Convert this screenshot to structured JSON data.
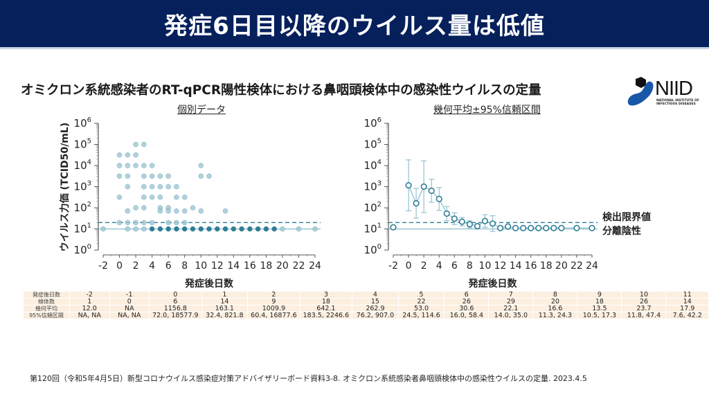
{
  "header": {
    "title": "発症6日目以降のウイルス量は低値"
  },
  "subtitle": "オミクロン系統感染者のRT-qPCR陽性検体における鼻咽頭検体中の感染性ウイルスの定量",
  "logo": {
    "name": "NIID",
    "sub": "NATIONAL INSTITUTE OF INFECTIOUS DISEASES"
  },
  "colors": {
    "header_bg": "#06205c",
    "series": "#2f7d95",
    "series_light": "#9cc6d3",
    "table_bg": "#fcefe0"
  },
  "chart_data": [
    {
      "type": "scatter",
      "title": "個別データ",
      "xlabel": "発症後日数",
      "ylabel": "ウイルス力価 (TCID50/mL)",
      "xlim": [
        -2,
        24
      ],
      "ylim_log10": [
        0,
        6
      ],
      "xticks": [
        "-2",
        "0",
        "2",
        "4",
        "6",
        "8",
        "10",
        "12",
        "14",
        "16",
        "18",
        "20",
        "22",
        "24"
      ],
      "yticks": [
        "10^0",
        "10^1",
        "10^2",
        "10^3",
        "10^4",
        "10^5",
        "10^6"
      ],
      "detection_limit": 20,
      "isolation_negative": 10,
      "points_log10": [
        {
          "x": -2,
          "y": 1
        },
        {
          "x": 0,
          "y": 4.5
        },
        {
          "x": 0,
          "y": 4
        },
        {
          "x": 0,
          "y": 3.5
        },
        {
          "x": 0,
          "y": 2.5
        },
        {
          "x": 0,
          "y": 1.3
        },
        {
          "x": 1,
          "y": 4.5
        },
        {
          "x": 1,
          "y": 4
        },
        {
          "x": 1,
          "y": 3.5
        },
        {
          "x": 1,
          "y": 3
        },
        {
          "x": 1,
          "y": 1.85
        },
        {
          "x": 1,
          "y": 1.3
        },
        {
          "x": 1,
          "y": 1
        },
        {
          "x": 2,
          "y": 5
        },
        {
          "x": 2,
          "y": 4.5
        },
        {
          "x": 2,
          "y": 4
        },
        {
          "x": 2,
          "y": 2
        },
        {
          "x": 2,
          "y": 1.3
        },
        {
          "x": 2,
          "y": 1
        },
        {
          "x": 3,
          "y": 5
        },
        {
          "x": 3,
          "y": 4
        },
        {
          "x": 3,
          "y": 3.5
        },
        {
          "x": 3,
          "y": 3
        },
        {
          "x": 3,
          "y": 2.5
        },
        {
          "x": 3,
          "y": 2
        },
        {
          "x": 3,
          "y": 1.3
        },
        {
          "x": 3,
          "y": 1
        },
        {
          "x": 4,
          "y": 4
        },
        {
          "x": 4,
          "y": 3.5
        },
        {
          "x": 4,
          "y": 3
        },
        {
          "x": 4,
          "y": 2.5
        },
        {
          "x": 4,
          "y": 1.3
        },
        {
          "x": 4,
          "y": 1
        },
        {
          "x": 5,
          "y": 3.5
        },
        {
          "x": 5,
          "y": 3
        },
        {
          "x": 5,
          "y": 2.5
        },
        {
          "x": 5,
          "y": 2
        },
        {
          "x": 5,
          "y": 1.85
        },
        {
          "x": 5,
          "y": 1
        },
        {
          "x": 6,
          "y": 3.5
        },
        {
          "x": 6,
          "y": 3
        },
        {
          "x": 6,
          "y": 2
        },
        {
          "x": 6,
          "y": 1.85
        },
        {
          "x": 6,
          "y": 1.3
        },
        {
          "x": 6,
          "y": 1
        },
        {
          "x": 7,
          "y": 3
        },
        {
          "x": 7,
          "y": 2.5
        },
        {
          "x": 7,
          "y": 1.85
        },
        {
          "x": 7,
          "y": 1.3
        },
        {
          "x": 7,
          "y": 1
        },
        {
          "x": 8,
          "y": 2.5
        },
        {
          "x": 8,
          "y": 1.85
        },
        {
          "x": 8,
          "y": 1.3
        },
        {
          "x": 8,
          "y": 1
        },
        {
          "x": 9,
          "y": 2
        },
        {
          "x": 9,
          "y": 1
        },
        {
          "x": 10,
          "y": 4
        },
        {
          "x": 10,
          "y": 3.5
        },
        {
          "x": 10,
          "y": 1.85
        },
        {
          "x": 10,
          "y": 1
        },
        {
          "x": 11,
          "y": 3.5
        },
        {
          "x": 11,
          "y": 1
        },
        {
          "x": 12,
          "y": 1
        },
        {
          "x": 13,
          "y": 1.85
        },
        {
          "x": 13,
          "y": 1
        },
        {
          "x": 14,
          "y": 1
        },
        {
          "x": 15,
          "y": 1
        },
        {
          "x": 16,
          "y": 1
        },
        {
          "x": 17,
          "y": 1
        },
        {
          "x": 18,
          "y": 1
        },
        {
          "x": 19,
          "y": 1
        },
        {
          "x": 20,
          "y": 1
        },
        {
          "x": 22,
          "y": 1
        },
        {
          "x": 24,
          "y": 1
        }
      ]
    },
    {
      "type": "line",
      "title": "幾何平均±95%信頼区間",
      "xlabel": "発症後日数",
      "xlim": [
        -2,
        24
      ],
      "ylim_log10": [
        0,
        6
      ],
      "xticks": [
        "-2",
        "0",
        "2",
        "4",
        "6",
        "8",
        "10",
        "12",
        "14",
        "16",
        "18",
        "20",
        "22",
        "24"
      ],
      "yticks": [
        "10^0",
        "10^1",
        "10^2",
        "10^3",
        "10^4",
        "10^5",
        "10^6"
      ],
      "detection_limit_label": "検出限界値",
      "isolation_negative_label": "分離陰性",
      "points": [
        {
          "x": -2,
          "gm": 12.0,
          "lo": null,
          "hi": null
        },
        {
          "x": 0,
          "gm": 1156.8,
          "lo": 72.0,
          "hi": 18577.9
        },
        {
          "x": 1,
          "gm": 163.1,
          "lo": 32.4,
          "hi": 821.8
        },
        {
          "x": 2,
          "gm": 1009.9,
          "lo": 60.4,
          "hi": 16877.6
        },
        {
          "x": 3,
          "gm": 642.1,
          "lo": 183.5,
          "hi": 2246.6
        },
        {
          "x": 4,
          "gm": 262.9,
          "lo": 76.2,
          "hi": 907.0
        },
        {
          "x": 5,
          "gm": 53.0,
          "lo": 24.5,
          "hi": 114.6
        },
        {
          "x": 6,
          "gm": 30.6,
          "lo": 16.0,
          "hi": 58.4
        },
        {
          "x": 7,
          "gm": 22.1,
          "lo": 14.0,
          "hi": 35.0
        },
        {
          "x": 8,
          "gm": 16.6,
          "lo": 11.3,
          "hi": 24.3
        },
        {
          "x": 9,
          "gm": 13.5,
          "lo": 10.5,
          "hi": 17.3
        },
        {
          "x": 10,
          "gm": 23.7,
          "lo": 11.8,
          "hi": 47.4
        },
        {
          "x": 11,
          "gm": 17.9,
          "lo": 7.6,
          "hi": 42.2
        },
        {
          "x": 12,
          "gm": 11,
          "lo": null,
          "hi": null
        },
        {
          "x": 13,
          "gm": 13,
          "lo": null,
          "hi": null
        },
        {
          "x": 14,
          "gm": 11,
          "lo": null,
          "hi": null
        },
        {
          "x": 15,
          "gm": 11,
          "lo": null,
          "hi": null
        },
        {
          "x": 16,
          "gm": 11,
          "lo": null,
          "hi": null
        },
        {
          "x": 17,
          "gm": 11,
          "lo": null,
          "hi": null
        },
        {
          "x": 18,
          "gm": 11,
          "lo": null,
          "hi": null
        },
        {
          "x": 19,
          "gm": 11,
          "lo": null,
          "hi": null
        },
        {
          "x": 20,
          "gm": 11,
          "lo": null,
          "hi": null
        },
        {
          "x": 22,
          "gm": 11,
          "lo": null,
          "hi": null
        },
        {
          "x": 24,
          "gm": 11,
          "lo": null,
          "hi": null
        }
      ]
    }
  ],
  "table": {
    "row_headers": [
      "発症後日数",
      "検体数",
      "幾何平均",
      "95%信頼区間"
    ],
    "columns": [
      {
        "day": "-2",
        "n": "1",
        "gm": "12.0",
        "ci": "NA, NA"
      },
      {
        "day": "-1",
        "n": "0",
        "gm": "NA",
        "ci": "NA, NA"
      },
      {
        "day": "0",
        "n": "6",
        "gm": "1156.8",
        "ci": "72.0, 18577.9"
      },
      {
        "day": "1",
        "n": "14",
        "gm": "163.1",
        "ci": "32.4, 821.8"
      },
      {
        "day": "2",
        "n": "9",
        "gm": "1009.9",
        "ci": "60.4, 16877.6"
      },
      {
        "day": "3",
        "n": "18",
        "gm": "642.1",
        "ci": "183.5, 2246.6"
      },
      {
        "day": "4",
        "n": "15",
        "gm": "262.9",
        "ci": "76.2, 907.0"
      },
      {
        "day": "5",
        "n": "22",
        "gm": "53.0",
        "ci": "24.5, 114.6"
      },
      {
        "day": "6",
        "n": "26",
        "gm": "30.6",
        "ci": "16.0, 58.4"
      },
      {
        "day": "7",
        "n": "29",
        "gm": "22.1",
        "ci": "14.0, 35.0"
      },
      {
        "day": "8",
        "n": "20",
        "gm": "16.6",
        "ci": "11.3, 24.3"
      },
      {
        "day": "9",
        "n": "18",
        "gm": "13.5",
        "ci": "10.5, 17.3"
      },
      {
        "day": "10",
        "n": "26",
        "gm": "23.7",
        "ci": "11.8, 47.4"
      },
      {
        "day": "11",
        "n": "14",
        "gm": "17.9",
        "ci": "7.6, 42.2"
      }
    ]
  },
  "footer": "第120回（令和5年4月5日）新型コロナウイルス感染症対策アドバイザリーボード資料3-8. オミクロン系統感染者鼻咽頭検体中の感染性ウイルスの定量. 2023.4.5"
}
